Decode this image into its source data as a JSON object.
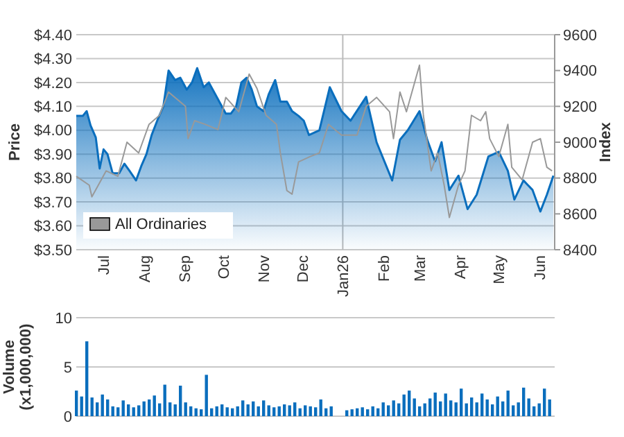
{
  "chart_data": [
    {
      "type": "area",
      "ylabel": "Price",
      "y2label": "Index",
      "xlim": [
        "2025-06-10",
        "2026-06-13"
      ],
      "xticks": [
        {
          "value": "2025-07-01",
          "label": "Jul"
        },
        {
          "value": "2025-08-01",
          "label": "Aug"
        },
        {
          "value": "2025-09-01",
          "label": "Sep"
        },
        {
          "value": "2025-10-01",
          "label": "Oct"
        },
        {
          "value": "2025-11-01",
          "label": "Nov"
        },
        {
          "value": "2025-12-01",
          "label": "Dec"
        },
        {
          "value": "2026-01-01",
          "label": "Jan26"
        },
        {
          "value": "2026-02-01",
          "label": "Feb"
        },
        {
          "value": "2026-03-01",
          "label": "Mar"
        },
        {
          "value": "2026-04-01",
          "label": "Apr"
        },
        {
          "value": "2026-05-01",
          "label": "May"
        },
        {
          "value": "2026-06-01",
          "label": "Jun"
        }
      ],
      "ylim": [
        3.5,
        4.4
      ],
      "yticks": [
        {
          "value": 3.5,
          "label": "$3.50"
        },
        {
          "value": 3.6,
          "label": "$3.60"
        },
        {
          "value": 3.7,
          "label": "$3.70"
        },
        {
          "value": 3.8,
          "label": "$3.80"
        },
        {
          "value": 3.9,
          "label": "$3.90"
        },
        {
          "value": 4.0,
          "label": "$4.00"
        },
        {
          "value": 4.1,
          "label": "$4.10"
        },
        {
          "value": 4.2,
          "label": "$4.20"
        },
        {
          "value": 4.3,
          "label": "$4.30"
        },
        {
          "value": 4.4,
          "label": "$4.40"
        }
      ],
      "y2lim": [
        8400,
        9600
      ],
      "y2ticks": [
        8400,
        8600,
        8800,
        9000,
        9200,
        9400,
        9600
      ],
      "grid": "y",
      "legend": "bottom left",
      "ref_lines": [
        {
          "axis": "x",
          "value": "2026-01-01",
          "color": "#bbbbbb"
        }
      ],
      "series": [
        {
          "type": "area",
          "color": "#0a6ebd",
          "axis": "y",
          "x": [
            "2025-06-10",
            "2025-06-15",
            "2025-06-18",
            "2025-06-21",
            "2025-06-25",
            "2025-06-28",
            "2025-07-01",
            "2025-07-04",
            "2025-07-08",
            "2025-07-13",
            "2025-07-17",
            "2025-07-21",
            "2025-07-26",
            "2025-07-30",
            "2025-08-03",
            "2025-08-07",
            "2025-08-12",
            "2025-08-16",
            "2025-08-20",
            "2025-08-25",
            "2025-08-29",
            "2025-09-03",
            "2025-09-07",
            "2025-09-11",
            "2025-09-16",
            "2025-09-20",
            "2025-09-24",
            "2025-09-28",
            "2025-10-03",
            "2025-10-07",
            "2025-10-11",
            "2025-10-15",
            "2025-10-19",
            "2025-10-23",
            "2025-10-27",
            "2025-11-01",
            "2025-11-05",
            "2025-11-10",
            "2025-11-14",
            "2025-11-19",
            "2025-11-23",
            "2025-11-28",
            "2025-12-02",
            "2025-12-06",
            "2025-12-14",
            "2025-12-22",
            "2025-12-31",
            "2026-01-07",
            "2026-01-19",
            "2026-01-27",
            "2026-02-08",
            "2026-02-14",
            "2026-02-20",
            "2026-03-01",
            "2026-03-07",
            "2026-03-13",
            "2026-03-18",
            "2026-03-24",
            "2026-03-31",
            "2026-04-07",
            "2026-04-14",
            "2026-04-23",
            "2026-05-01",
            "2026-05-08",
            "2026-05-13",
            "2026-05-20",
            "2026-05-27",
            "2026-06-02",
            "2026-06-07",
            "2026-06-12"
          ],
          "values": [
            4.06,
            4.06,
            4.08,
            4.02,
            3.97,
            3.84,
            3.92,
            3.9,
            3.82,
            3.82,
            3.86,
            3.83,
            3.79,
            3.85,
            3.9,
            3.98,
            4.05,
            4.1,
            4.25,
            4.21,
            4.22,
            4.17,
            4.2,
            4.26,
            4.18,
            4.2,
            4.16,
            4.12,
            4.07,
            4.07,
            4.1,
            4.2,
            4.22,
            4.17,
            4.1,
            4.08,
            4.15,
            4.21,
            4.12,
            4.12,
            4.08,
            4.06,
            4.04,
            3.98,
            4.0,
            4.18,
            4.08,
            4.04,
            4.14,
            3.95,
            3.79,
            3.96,
            4.0,
            4.08,
            3.96,
            3.87,
            3.95,
            3.75,
            3.81,
            3.67,
            3.73,
            3.89,
            3.91,
            3.83,
            3.71,
            3.79,
            3.75,
            3.66,
            3.73,
            3.81
          ]
        },
        {
          "type": "line",
          "name": "All Ordinaries",
          "color": "#999999",
          "axis": "y2",
          "x": [
            "2025-06-10",
            "2025-06-20",
            "2025-06-22",
            "2025-07-03",
            "2025-07-12",
            "2025-07-19",
            "2025-07-28",
            "2025-08-05",
            "2025-08-13",
            "2025-08-20",
            "2025-09-02",
            "2025-09-04",
            "2025-09-09",
            "2025-09-17",
            "2025-09-27",
            "2025-10-03",
            "2025-10-13",
            "2025-10-21",
            "2025-10-27",
            "2025-11-03",
            "2025-11-11",
            "2025-11-14",
            "2025-11-19",
            "2025-11-23",
            "2025-11-28",
            "2025-12-07",
            "2025-12-14",
            "2025-12-21",
            "2025-12-31",
            "2026-01-12",
            "2026-01-19",
            "2026-01-27",
            "2026-02-06",
            "2026-02-09",
            "2026-02-14",
            "2026-02-19",
            "2026-02-24",
            "2026-03-01",
            "2026-03-04",
            "2026-03-10",
            "2026-03-15",
            "2026-03-20",
            "2026-03-24",
            "2026-03-31",
            "2026-04-05",
            "2026-04-10",
            "2026-04-17",
            "2026-04-21",
            "2026-04-24",
            "2026-05-01",
            "2026-05-08",
            "2026-05-11",
            "2026-05-19",
            "2026-05-27",
            "2026-06-02",
            "2026-06-07",
            "2026-06-11"
          ],
          "values": [
            8810,
            8760,
            8695,
            8840,
            8810,
            9000,
            8940,
            9100,
            9150,
            9280,
            9200,
            9020,
            9120,
            9100,
            9070,
            9250,
            9170,
            9380,
            9300,
            9150,
            9100,
            8940,
            8730,
            8710,
            8890,
            8920,
            8940,
            9100,
            9040,
            9040,
            9200,
            9250,
            9170,
            9020,
            9280,
            9170,
            9300,
            9430,
            9150,
            8840,
            8940,
            8760,
            8580,
            8760,
            8840,
            9150,
            9120,
            9170,
            9020,
            8920,
            9100,
            8860,
            8790,
            9000,
            9020,
            8860,
            8840
          ]
        }
      ]
    },
    {
      "type": "bar",
      "ylabel": "Volume (x1,000,000)",
      "xlim": [
        "2025-06-10",
        "2026-06-13"
      ],
      "ylim": [
        0,
        10
      ],
      "yticks": [
        0,
        5,
        10
      ],
      "grid": "y",
      "tick_labels": "y",
      "color": "#0a6ebd",
      "x": [
        "2025-06-10",
        "2025-06-14",
        "2025-06-18",
        "2025-06-22",
        "2025-06-26",
        "2025-06-30",
        "2025-07-04",
        "2025-07-08",
        "2025-07-12",
        "2025-07-16",
        "2025-07-20",
        "2025-07-24",
        "2025-07-28",
        "2025-08-01",
        "2025-08-05",
        "2025-08-09",
        "2025-08-13",
        "2025-08-17",
        "2025-08-21",
        "2025-08-25",
        "2025-08-29",
        "2025-09-02",
        "2025-09-06",
        "2025-09-10",
        "2025-09-14",
        "2025-09-18",
        "2025-09-22",
        "2025-09-26",
        "2025-09-30",
        "2025-10-04",
        "2025-10-08",
        "2025-10-12",
        "2025-10-16",
        "2025-10-20",
        "2025-10-24",
        "2025-10-28",
        "2025-11-01",
        "2025-11-05",
        "2025-11-09",
        "2025-11-13",
        "2025-11-17",
        "2025-11-21",
        "2025-11-25",
        "2025-11-29",
        "2025-12-03",
        "2025-12-07",
        "2025-12-11",
        "2025-12-15",
        "2025-12-19",
        "2025-12-23",
        "2026-01-04",
        "2026-01-08",
        "2026-01-12",
        "2026-01-16",
        "2026-01-20",
        "2026-01-24",
        "2026-01-28",
        "2026-02-01",
        "2026-02-05",
        "2026-02-09",
        "2026-02-13",
        "2026-02-17",
        "2026-02-21",
        "2026-02-25",
        "2026-03-01",
        "2026-03-05",
        "2026-03-09",
        "2026-03-13",
        "2026-03-17",
        "2026-03-21",
        "2026-03-25",
        "2026-03-29",
        "2026-04-02",
        "2026-04-06",
        "2026-04-10",
        "2026-04-14",
        "2026-04-18",
        "2026-04-22",
        "2026-04-26",
        "2026-04-30",
        "2026-05-04",
        "2026-05-08",
        "2026-05-12",
        "2026-05-16",
        "2026-05-20",
        "2026-05-24",
        "2026-05-28",
        "2026-06-01",
        "2026-06-05",
        "2026-06-09"
      ],
      "values": [
        2.6,
        2.0,
        7.6,
        1.9,
        1.4,
        2.2,
        1.7,
        1.0,
        0.9,
        1.6,
        1.2,
        0.9,
        1.1,
        1.5,
        1.7,
        2.1,
        1.3,
        3.2,
        1.4,
        1.2,
        3.1,
        1.4,
        1.0,
        0.8,
        0.7,
        4.2,
        0.8,
        1.0,
        1.2,
        0.9,
        0.8,
        1.0,
        1.6,
        1.2,
        1.5,
        1.0,
        1.6,
        1.1,
        0.9,
        1.0,
        1.2,
        1.1,
        1.4,
        0.8,
        1.1,
        1.0,
        0.9,
        1.7,
        0.8,
        1.0,
        0.6,
        0.7,
        0.8,
        0.9,
        0.7,
        1.0,
        0.8,
        1.4,
        1.1,
        1.6,
        1.3,
        2.2,
        2.6,
        1.8,
        1.0,
        1.3,
        1.8,
        2.4,
        1.5,
        2.3,
        1.6,
        1.4,
        2.8,
        1.3,
        1.9,
        1.4,
        2.3,
        1.7,
        1.2,
        2.0,
        1.5,
        2.6,
        1.1,
        1.4,
        2.9,
        1.8,
        1.0,
        1.3,
        2.8,
        1.7
      ]
    }
  ]
}
